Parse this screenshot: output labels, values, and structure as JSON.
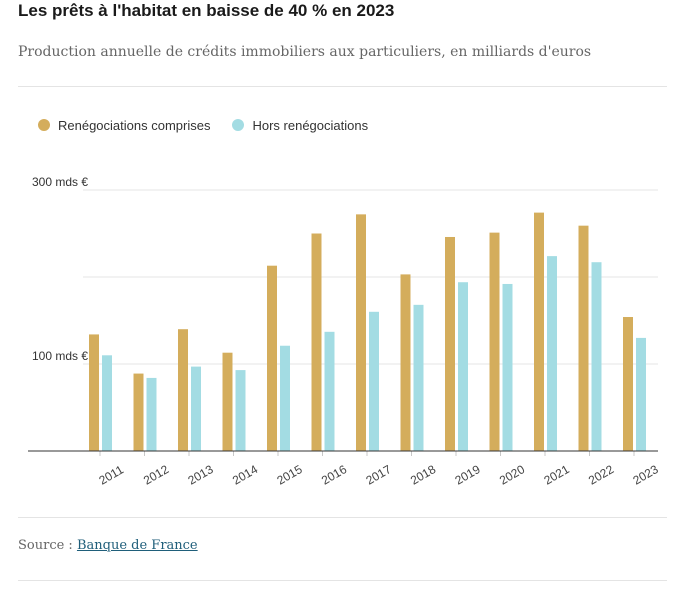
{
  "title": "Les prêts à l'habitat en baisse de 40 % en 2023",
  "subtitle": "Production annuelle de crédits immobiliers aux particuliers, en milliards d'euros",
  "colors": {
    "series1": "#d4ad5c",
    "series2": "#a3dce3",
    "grid": "#e6e6e6",
    "axis": "#333333"
  },
  "source": {
    "prefix": "Source : ",
    "link_label": "Banque de France"
  },
  "chart_data": {
    "type": "bar",
    "title": "Les prêts à l'habitat en baisse de 40 % en 2023",
    "subtitle": "Production annuelle de crédits immobiliers aux particuliers, en milliards d'euros",
    "categories": [
      "2011",
      "2012",
      "2013",
      "2014",
      "2015",
      "2016",
      "2017",
      "2018",
      "2019",
      "2020",
      "2021",
      "2022",
      "2023"
    ],
    "series": [
      {
        "name": "Renégociations comprises",
        "values": [
          134,
          89,
          140,
          113,
          213,
          250,
          272,
          203,
          246,
          251,
          274,
          259,
          154
        ]
      },
      {
        "name": "Hors renégociations",
        "values": [
          110,
          84,
          97,
          93,
          121,
          137,
          160,
          168,
          194,
          192,
          224,
          217,
          130
        ]
      }
    ],
    "ytick_labels": [
      {
        "value": 300,
        "label": "300 mds €"
      },
      {
        "value": 100,
        "label": "100 mds €"
      }
    ],
    "gridlines": [
      100,
      200,
      300
    ],
    "ylim": [
      0,
      300
    ],
    "legend_position": "top-left",
    "grid": true
  }
}
